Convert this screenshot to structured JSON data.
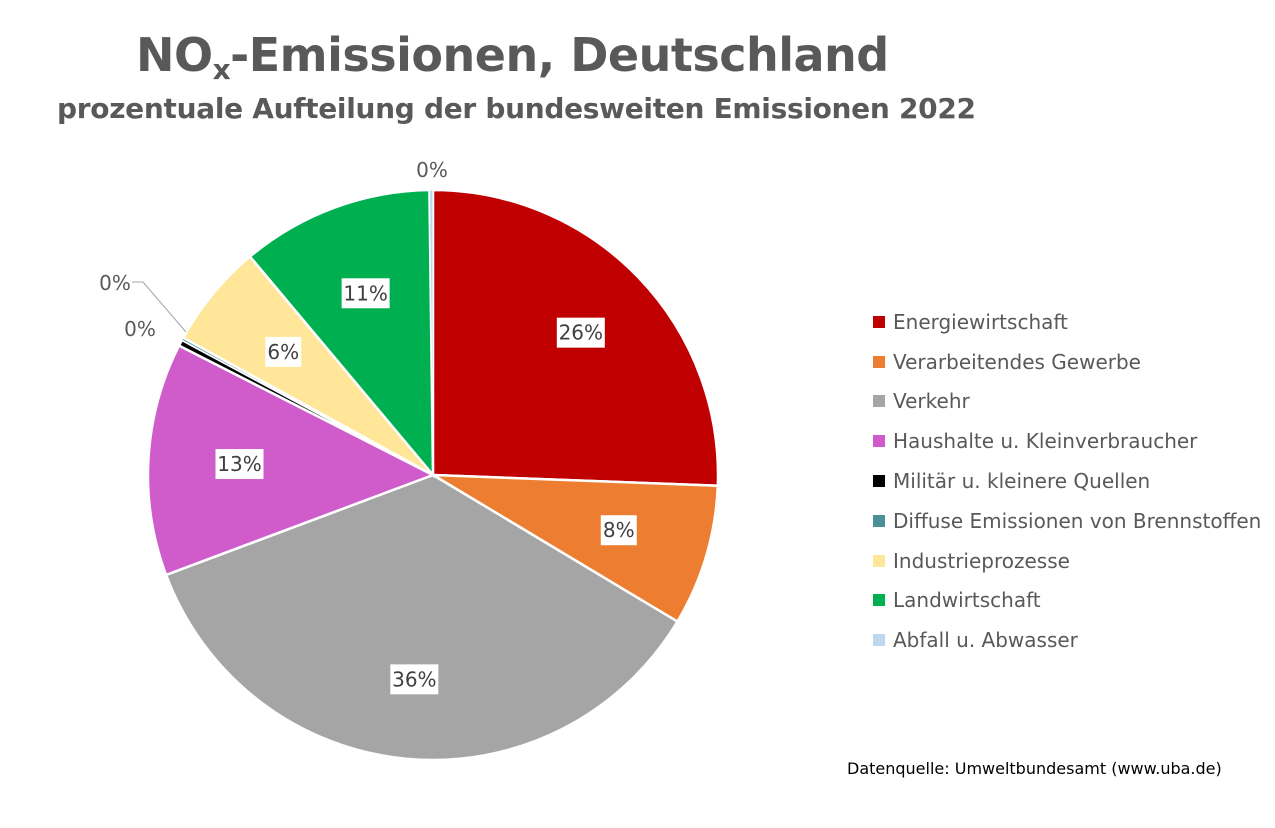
{
  "chart_data": {
    "type": "pie",
    "title_main": "NO",
    "title_sub": "x",
    "title_rest": "-Emissionen, Deutschland",
    "subtitle": "prozentuale Aufteilung der bundesweiten Emissionen 2022",
    "start_angle_deg": 0,
    "direction": "clockwise",
    "slices": [
      {
        "name": "Energiewirtschaft",
        "value": 25.6,
        "label": "26%",
        "color": "#c00000"
      },
      {
        "name": "Verarbeitendes Gewerbe",
        "value": 8.0,
        "label": "8%",
        "color": "#ed7d31"
      },
      {
        "name": "Verkehr",
        "value": 35.7,
        "label": "36%",
        "color": "#a5a5a5"
      },
      {
        "name": "Haushalte u. Kleinverbraucher",
        "value": 13.2,
        "label": "13%",
        "color": "#d05ccc"
      },
      {
        "name": "Militär u. kleinere Quellen",
        "value": 0.35,
        "label": "0%",
        "color": "#000000"
      },
      {
        "name": "Diffuse Emissionen von Brennstoffen",
        "value": 0.15,
        "label": "0%",
        "color": "#4b8f99"
      },
      {
        "name": "Industrieprozesse",
        "value": 5.9,
        "label": "6%",
        "color": "#ffe699"
      },
      {
        "name": "Landwirtschaft",
        "value": 10.9,
        "label": "11%",
        "color": "#00b050"
      },
      {
        "name": "Abfall u. Abwasser",
        "value": 0.2,
        "label": "0%",
        "color": "#bdd7ee"
      }
    ],
    "legend_position": "right"
  },
  "source_text": "Datenquelle: Umweltbundesamt (www.uba.de)"
}
